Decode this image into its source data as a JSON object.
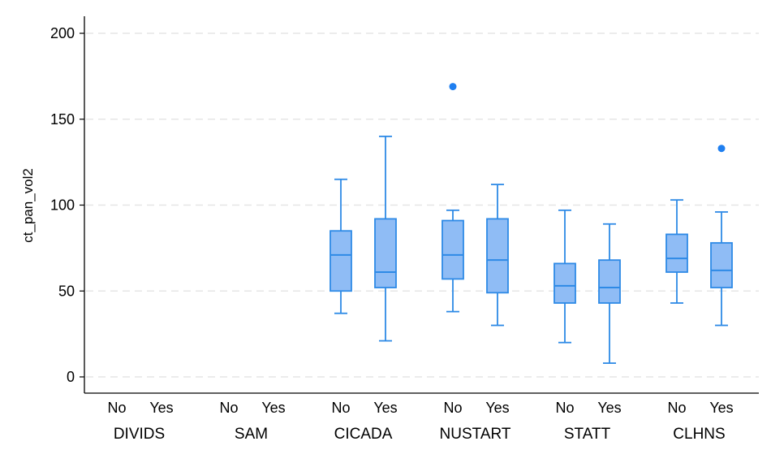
{
  "chart_data": {
    "type": "box",
    "ylabel": "ct_pan_vol2",
    "ylim": [
      -10,
      210
    ],
    "yticks": [
      0,
      50,
      100,
      150,
      200
    ],
    "grid": "horizontal-dashed",
    "colors": {
      "box_fill": "#8fbcf5",
      "box_stroke": "#2e8ae6",
      "outlier": "#1f7ff0",
      "grid": "#e6e6e6"
    },
    "groups": [
      {
        "name": "DIVIDS",
        "boxes": [
          {
            "label": "No",
            "stats": null
          },
          {
            "label": "Yes",
            "stats": null
          }
        ]
      },
      {
        "name": "SAM",
        "boxes": [
          {
            "label": "No",
            "stats": null
          },
          {
            "label": "Yes",
            "stats": null
          }
        ]
      },
      {
        "name": "CICADA",
        "boxes": [
          {
            "label": "No",
            "stats": {
              "min": 37,
              "q1": 50,
              "median": 71,
              "q3": 85,
              "max": 115
            },
            "outliers": []
          },
          {
            "label": "Yes",
            "stats": {
              "min": 21,
              "q1": 52,
              "median": 61,
              "q3": 92,
              "max": 140
            },
            "outliers": []
          }
        ]
      },
      {
        "name": "NUSTART",
        "boxes": [
          {
            "label": "No",
            "stats": {
              "min": 38,
              "q1": 57,
              "median": 71,
              "q3": 91,
              "max": 97
            },
            "outliers": [
              169
            ]
          },
          {
            "label": "Yes",
            "stats": {
              "min": 30,
              "q1": 49,
              "median": 68,
              "q3": 92,
              "max": 112
            },
            "outliers": []
          }
        ]
      },
      {
        "name": "STATT",
        "boxes": [
          {
            "label": "No",
            "stats": {
              "min": 20,
              "q1": 43,
              "median": 53,
              "q3": 66,
              "max": 97
            },
            "outliers": []
          },
          {
            "label": "Yes",
            "stats": {
              "min": 8,
              "q1": 43,
              "median": 52,
              "q3": 68,
              "max": 89
            },
            "outliers": []
          }
        ]
      },
      {
        "name": "CLHNS",
        "boxes": [
          {
            "label": "No",
            "stats": {
              "min": 43,
              "q1": 61,
              "median": 69,
              "q3": 83,
              "max": 103
            },
            "outliers": []
          },
          {
            "label": "Yes",
            "stats": {
              "min": 30,
              "q1": 52,
              "median": 62,
              "q3": 78,
              "max": 96
            },
            "outliers": [
              133
            ]
          }
        ]
      }
    ]
  }
}
